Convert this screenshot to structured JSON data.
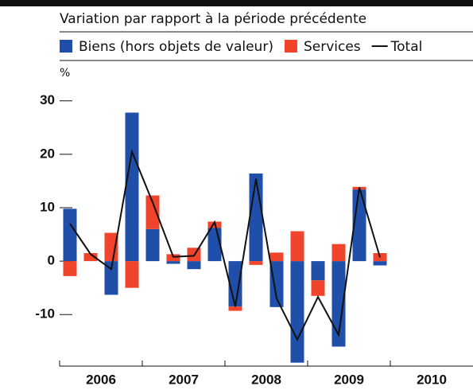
{
  "chart_data": {
    "type": "stacked-bar-line",
    "title": "Variation par rapport à la période précédente",
    "unit": "%",
    "categories": [
      null,
      null,
      null,
      null,
      null,
      null,
      null,
      null,
      null,
      null,
      null,
      null,
      null,
      null,
      null,
      null,
      null,
      null,
      null,
      null
    ],
    "groups": [
      "2006",
      "2007",
      "2008",
      "2009",
      "2010"
    ],
    "series": [
      {
        "name": "Biens (hors objets de valeur)",
        "color": "#1f4fa8",
        "kind": "bar",
        "values": [
          9.8,
          0,
          -6.3,
          27.8,
          6,
          -0.5,
          -1.5,
          6.2,
          -8.5,
          16.4,
          -8.6,
          -19,
          -3.6,
          -16,
          13.4,
          -0.8,
          null,
          null,
          null,
          null
        ]
      },
      {
        "name": "Services",
        "color": "#f0442c",
        "kind": "bar",
        "values": [
          -2.8,
          1.5,
          5.3,
          -5,
          6.3,
          1.3,
          2.5,
          1.2,
          -0.8,
          -0.7,
          1.6,
          5.6,
          -2.9,
          3.2,
          0.5,
          1.5,
          null,
          null,
          null,
          null
        ]
      },
      {
        "name": "Total",
        "color": "#111111",
        "kind": "line",
        "values": [
          7,
          1.3,
          -1.5,
          20.5,
          11,
          0.8,
          1,
          7.3,
          -8.5,
          15.4,
          -7,
          -14.7,
          -6.7,
          -13.8,
          13.8,
          0.7,
          null,
          null,
          null,
          null
        ]
      }
    ],
    "ylim": [
      -19.5,
      31
    ],
    "yticks": [
      -10,
      0,
      10,
      20,
      30
    ],
    "legend": "top"
  }
}
